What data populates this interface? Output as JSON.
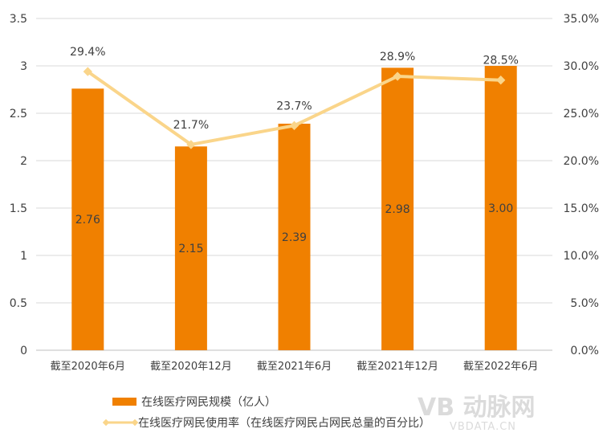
{
  "chart_data": {
    "type": "bar+line",
    "categories": [
      "截至2020年6月",
      "截至2020年12月",
      "截至2021年6月",
      "截至2021年12月",
      "截至2022年6月"
    ],
    "series": [
      {
        "name": "在线医疗网民规模（亿人）",
        "type": "bar",
        "axis": "left",
        "values": [
          2.76,
          2.15,
          2.39,
          2.98,
          3.0
        ],
        "labels": [
          "2.76",
          "2.15",
          "2.39",
          "2.98",
          "3.00"
        ],
        "color": "#F08000"
      },
      {
        "name": "在线医疗网民使用率（在线医疗网民占网民总量的百分比）",
        "type": "line",
        "axis": "right",
        "values": [
          29.4,
          21.7,
          23.7,
          28.9,
          28.5
        ],
        "labels": [
          "29.4%",
          "21.7%",
          "23.7%",
          "28.9%",
          "28.5%"
        ],
        "color": "#FAD58A"
      }
    ],
    "left_axis": {
      "ylim": [
        0,
        3.5
      ],
      "ticks": [
        "0",
        "0.5",
        "1",
        "1.5",
        "2",
        "2.5",
        "3",
        "3.5"
      ]
    },
    "right_axis": {
      "ylim": [
        0,
        35
      ],
      "ticks": [
        "0.0%",
        "5.0%",
        "10.0%",
        "15.0%",
        "20.0%",
        "25.0%",
        "30.0%",
        "35.0%"
      ]
    },
    "grid": true,
    "legend": "bottom"
  },
  "watermark": {
    "logo": "VB 动脉网",
    "url_text": "VBDATA.CN"
  }
}
